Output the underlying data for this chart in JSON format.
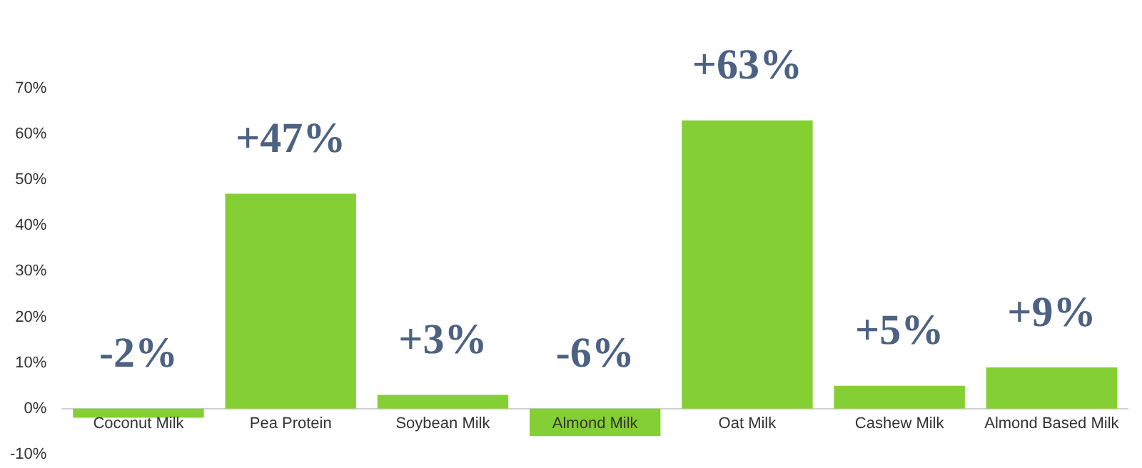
{
  "chart_data": {
    "type": "bar",
    "categories": [
      "Coconut Milk",
      "Pea Protein",
      "Soybean Milk",
      "Almond Milk",
      "Oat Milk",
      "Cashew Milk",
      "Almond Based Milk"
    ],
    "values": [
      -2,
      47,
      3,
      -6,
      63,
      5,
      9
    ],
    "color": "#84cf34",
    "value_labels": [
      "-2%",
      "+47%",
      "+3%",
      "-6%",
      "+63%",
      "+5%",
      "+9%"
    ],
    "ylim": [
      -10,
      70
    ],
    "yticks": [
      {
        "value": -10,
        "label": "-10%"
      },
      {
        "value": 0,
        "label": "0%"
      },
      {
        "value": 10,
        "label": "10%"
      },
      {
        "value": 20,
        "label": "20%"
      },
      {
        "value": 30,
        "label": "30%"
      },
      {
        "value": 40,
        "label": "40%"
      },
      {
        "value": 50,
        "label": "50%"
      },
      {
        "value": 60,
        "label": "60%"
      },
      {
        "value": 70,
        "label": "70%"
      }
    ],
    "grid": false,
    "legend": false
  }
}
